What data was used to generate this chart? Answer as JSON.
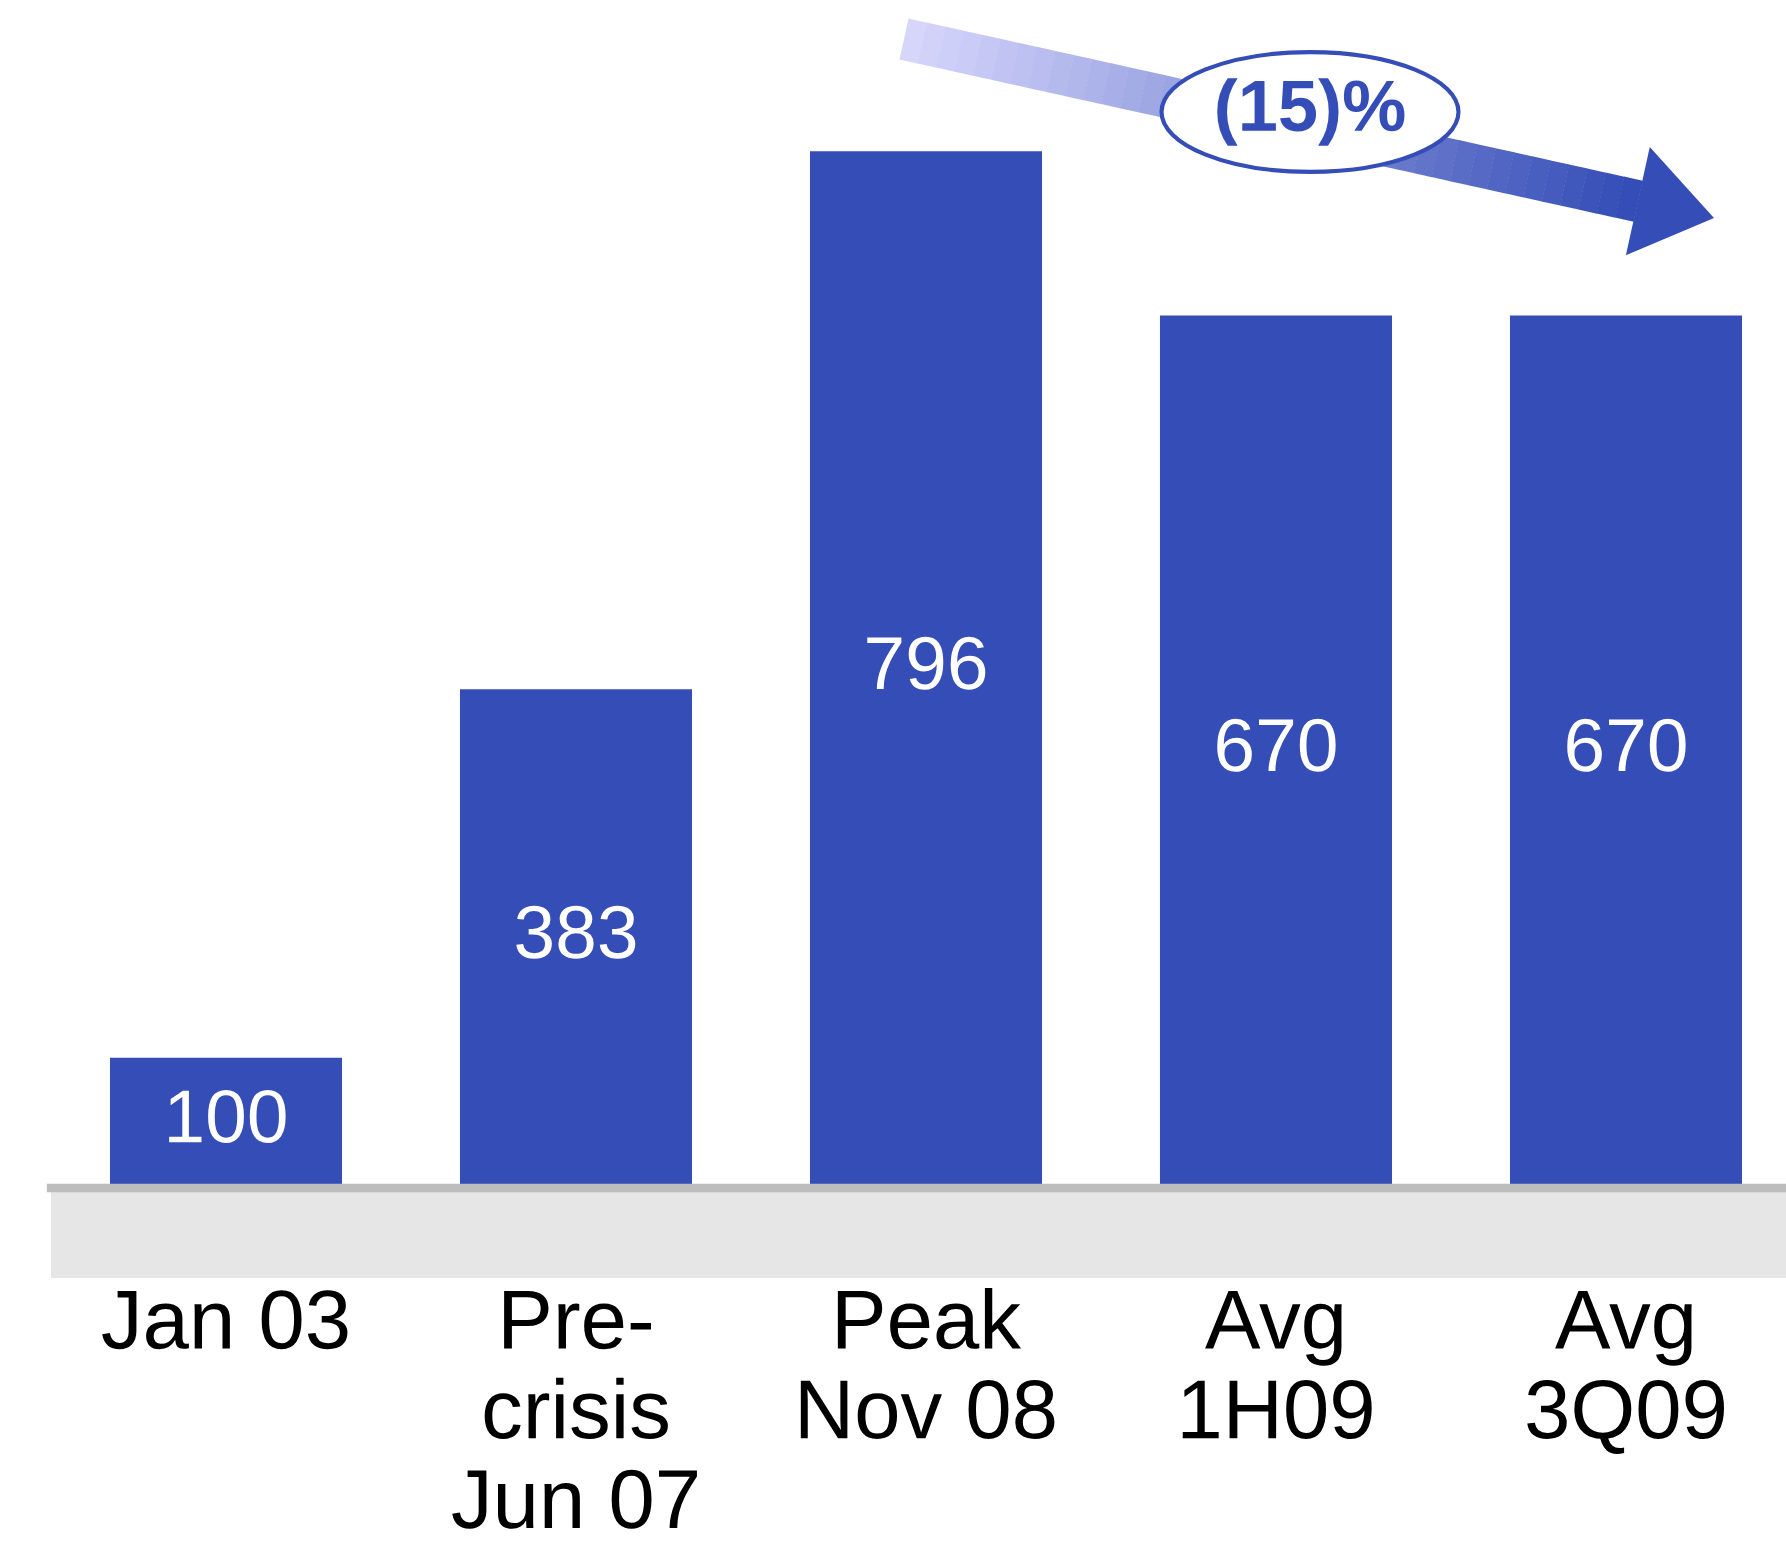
{
  "chart_data": {
    "type": "bar",
    "categories": [
      "Jan 03",
      "Pre-\ncrisis\nJun 07",
      "Peak\nNov 08",
      "Avg\n1H09",
      "Avg\n3Q09"
    ],
    "values": [
      100,
      383,
      796,
      670,
      670
    ],
    "color": "#344db7",
    "data_labels": true,
    "tick_labels": "x",
    "annotations": [
      "(15)%"
    ]
  }
}
